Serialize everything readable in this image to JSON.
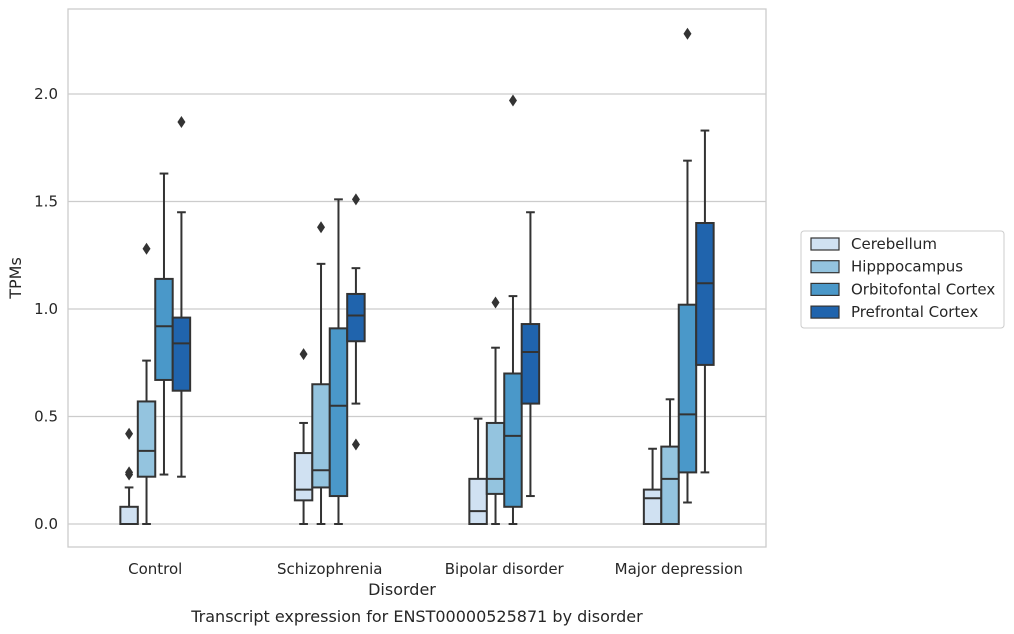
{
  "chart_data": {
    "type": "box",
    "caption": "Transcript expression for ENST00000525871 by disorder",
    "xlabel": "Disorder",
    "ylabel": "TPMs",
    "ylim": [
      -0.11,
      2.4
    ],
    "yticks": [
      "0.0",
      "0.5",
      "1.0",
      "1.5",
      "2.0"
    ],
    "grid": "horizontal",
    "legend_position": "right",
    "categories": [
      "Control",
      "Schizophrenia",
      "Bipolar disorder",
      "Major depression"
    ],
    "series": [
      {
        "name": "Cerebellum",
        "color": "#d0e1f2",
        "boxes": [
          {
            "whisker_low": 0.0,
            "q1": 0.0,
            "median": 0.0,
            "q3": 0.08,
            "whisker_high": 0.17,
            "outliers": [
              0.23,
              0.24,
              0.42
            ]
          },
          {
            "whisker_low": 0.0,
            "q1": 0.11,
            "median": 0.16,
            "q3": 0.33,
            "whisker_high": 0.47,
            "outliers": [
              0.79
            ]
          },
          {
            "whisker_low": 0.0,
            "q1": 0.0,
            "median": 0.06,
            "q3": 0.21,
            "whisker_high": 0.49,
            "outliers": []
          },
          {
            "whisker_low": 0.0,
            "q1": 0.0,
            "median": 0.12,
            "q3": 0.16,
            "whisker_high": 0.35,
            "outliers": []
          }
        ]
      },
      {
        "name": "Hipppocampus",
        "color": "#94c4df",
        "boxes": [
          {
            "whisker_low": 0.0,
            "q1": 0.22,
            "median": 0.34,
            "q3": 0.57,
            "whisker_high": 0.76,
            "outliers": [
              1.28
            ]
          },
          {
            "whisker_low": 0.0,
            "q1": 0.17,
            "median": 0.25,
            "q3": 0.65,
            "whisker_high": 1.21,
            "outliers": [
              1.38
            ]
          },
          {
            "whisker_low": 0.0,
            "q1": 0.14,
            "median": 0.21,
            "q3": 0.47,
            "whisker_high": 0.82,
            "outliers": [
              1.03
            ]
          },
          {
            "whisker_low": 0.0,
            "q1": 0.0,
            "median": 0.21,
            "q3": 0.36,
            "whisker_high": 0.58,
            "outliers": []
          }
        ]
      },
      {
        "name": "Orbitofontal Cortex",
        "color": "#4a98c9",
        "boxes": [
          {
            "whisker_low": 0.23,
            "q1": 0.67,
            "median": 0.92,
            "q3": 1.14,
            "whisker_high": 1.63,
            "outliers": []
          },
          {
            "whisker_low": 0.0,
            "q1": 0.13,
            "median": 0.55,
            "q3": 0.91,
            "whisker_high": 1.51,
            "outliers": []
          },
          {
            "whisker_low": 0.0,
            "q1": 0.08,
            "median": 0.41,
            "q3": 0.7,
            "whisker_high": 1.06,
            "outliers": [
              1.97
            ]
          },
          {
            "whisker_low": 0.1,
            "q1": 0.24,
            "median": 0.51,
            "q3": 1.02,
            "whisker_high": 1.69,
            "outliers": [
              2.28
            ]
          }
        ]
      },
      {
        "name": "Prefrontal Cortex",
        "color": "#2064ad",
        "boxes": [
          {
            "whisker_low": 0.22,
            "q1": 0.62,
            "median": 0.84,
            "q3": 0.96,
            "whisker_high": 1.45,
            "outliers": [
              1.87
            ]
          },
          {
            "whisker_low": 0.56,
            "q1": 0.85,
            "median": 0.97,
            "q3": 1.07,
            "whisker_high": 1.19,
            "outliers": [
              0.37,
              1.51
            ]
          },
          {
            "whisker_low": 0.13,
            "q1": 0.56,
            "median": 0.8,
            "q3": 0.93,
            "whisker_high": 1.45,
            "outliers": []
          },
          {
            "whisker_low": 0.24,
            "q1": 0.74,
            "median": 1.12,
            "q3": 1.4,
            "whisker_high": 1.83,
            "outliers": []
          }
        ]
      }
    ]
  }
}
